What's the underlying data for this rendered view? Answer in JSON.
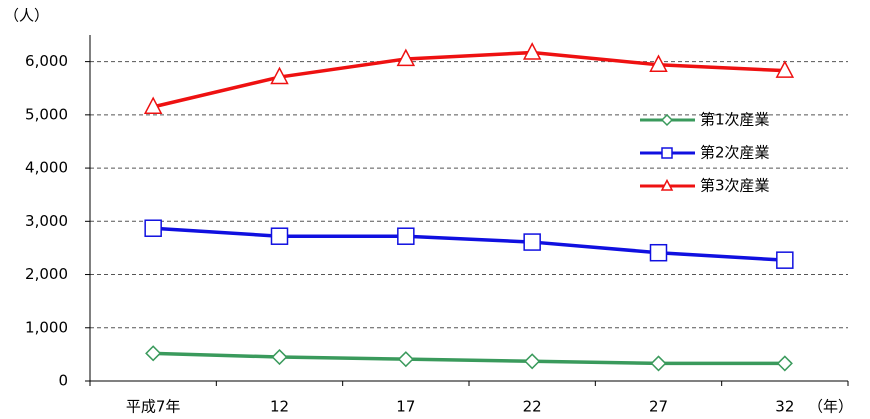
{
  "chart_data": {
    "type": "line",
    "y_unit": "（人）",
    "x_unit": "（年）",
    "categories": [
      "平成7年",
      "12",
      "17",
      "22",
      "27",
      "32"
    ],
    "series": [
      {
        "name": "第1次産業",
        "color": "#3a9a5c",
        "marker": "diamond",
        "values": [
          520,
          450,
          410,
          370,
          330,
          330
        ]
      },
      {
        "name": "第2次産業",
        "color": "#1010e0",
        "marker": "square",
        "values": [
          2870,
          2720,
          2720,
          2610,
          2410,
          2270
        ]
      },
      {
        "name": "第3次産業",
        "color": "#ee1111",
        "marker": "triangle",
        "values": [
          5150,
          5710,
          6050,
          6170,
          5940,
          5830
        ]
      }
    ],
    "ylim": [
      0,
      6500
    ],
    "yticks": [
      0,
      {
        "value": 1000,
        "label": "1,000"
      },
      {
        "value": 2000,
        "label": "2,000"
      },
      {
        "value": 3000,
        "label": "3,000"
      },
      {
        "value": 4000,
        "label": "4,000"
      },
      {
        "value": 5000,
        "label": "5,000"
      },
      {
        "value": 6000,
        "label": "6,000"
      }
    ],
    "grid": true
  }
}
